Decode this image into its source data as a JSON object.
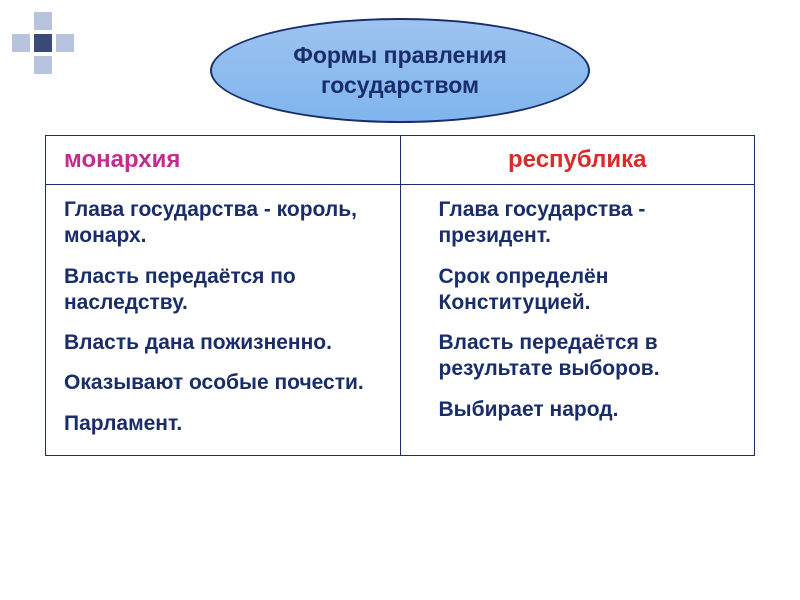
{
  "decoration": {
    "light_color": "#b8c3e0",
    "dark_color": "#3a4a7a"
  },
  "header": {
    "line1": "Формы правления",
    "line2": "государством",
    "bg_gradient_top": "#9dc3f0",
    "bg_gradient_bottom": "#7fb5ed",
    "border_color": "#1a2d6b",
    "text_color": "#1a2d6b",
    "font_size": 23
  },
  "table": {
    "border_color": "#1a2d6b",
    "columns": [
      {
        "header": "монархия",
        "header_color": "#c72b8f",
        "header_align": "left",
        "items": [
          "Глава государства - король, монарх.",
          "Власть передаётся по наследству.",
          "Власть дана пожизненно.",
          "Оказывают особые почести.",
          "Парламент."
        ]
      },
      {
        "header": "республика",
        "header_color": "#d82c2c",
        "header_align": "center",
        "items": [
          "Глава государства - президент.",
          "Срок определён Конституцией.",
          "Власть передаётся в результате выборов.",
          "Выбирает народ."
        ]
      }
    ],
    "body_text_color": "#1a2d6b",
    "body_font_size": 21
  }
}
